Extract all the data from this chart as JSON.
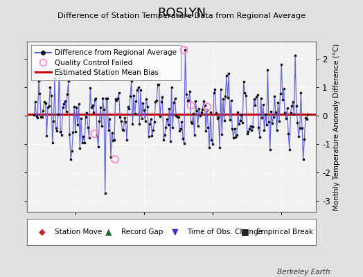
{
  "title": "ROSLYN",
  "subtitle": "Difference of Station Temperature Data from Regional Average",
  "ylabel": "Monthly Temperature Anomaly Difference (°C)",
  "bias_value": 0.05,
  "xlim": [
    1911.5,
    1932.5
  ],
  "ylim": [
    -3.4,
    2.6
  ],
  "yticks": [
    -3,
    -2,
    -1,
    0,
    1,
    2
  ],
  "xticks": [
    1915,
    1920,
    1925,
    1930
  ],
  "bg_color": "#e0e0e0",
  "plot_bg_color": "#f2f2f2",
  "line_color": "#5555dd",
  "dot_color": "#111111",
  "bias_color": "#cc0000",
  "qc_color": "#ff88cc",
  "watermark": "Berkeley Earth",
  "legend_top": [
    "Difference from Regional Average",
    "Quality Control Failed",
    "Estimated Station Mean Bias"
  ],
  "legend_bot_markers": [
    "◆",
    "▲",
    "▼",
    "■"
  ],
  "legend_bot_colors": [
    "#cc2222",
    "#226622",
    "#3333cc",
    "#222222"
  ],
  "legend_bot_labels": [
    "Station Move",
    "Record Gap",
    "Time of Obs. Change",
    "Empirical Break"
  ],
  "seed": 12345
}
